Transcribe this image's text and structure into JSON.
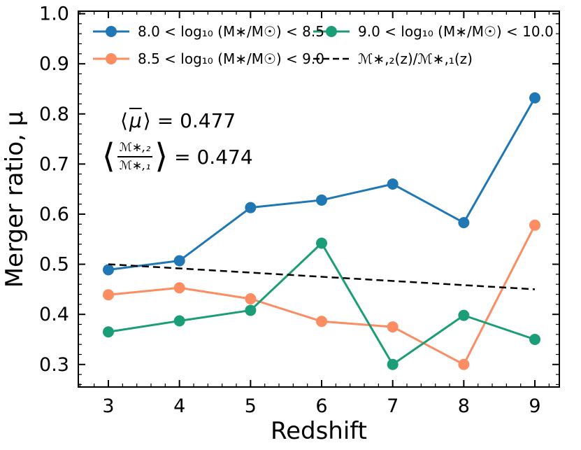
{
  "page": {
    "background": "#ffffff"
  },
  "chart_data": {
    "type": "line",
    "title": "",
    "xlabel": "Redshift",
    "ylabel": "Merger ratio, μ",
    "xlim": [
      2.577,
      9.344
    ],
    "ylim": [
      0.255,
      1.005
    ],
    "x_ticks": [
      3,
      4,
      5,
      6,
      7,
      8,
      9
    ],
    "y_ticks": [
      0.3,
      0.4,
      0.5,
      0.6,
      0.7,
      0.8,
      0.9,
      1.0
    ],
    "grid": false,
    "legend_position": "upper, two columns inside plot",
    "x": [
      3,
      4,
      5,
      6,
      7,
      8,
      9
    ],
    "series": [
      {
        "name": "8.0 < log₁₀ (M∗/M☉) < 8.5",
        "color": "#1f77b4",
        "values": [
          0.489,
          0.507,
          0.613,
          0.628,
          0.66,
          0.583,
          0.832
        ]
      },
      {
        "name": "8.5 < log₁₀ (M∗/M☉) < 9.0",
        "color": "#fc8d62",
        "values": [
          0.439,
          0.453,
          0.431,
          0.386,
          0.375,
          0.3,
          0.578
        ]
      },
      {
        "name": "9.0 < log₁₀ (M∗/M☉) < 10.0",
        "color": "#1b9e77",
        "values": [
          0.365,
          0.387,
          0.408,
          0.542,
          0.3,
          0.398,
          0.35
        ]
      }
    ],
    "dashed_line": {
      "name": "ℳ∗,₂(z)/ℳ∗,₁(z)",
      "color": "#000000",
      "x": [
        3,
        9
      ],
      "y": [
        0.5,
        0.45
      ]
    }
  },
  "annotations": {
    "mu": {
      "open": "⟨",
      "symbol": "μ",
      "close": "⟩",
      "value": "= 0.477"
    },
    "ratio": {
      "open": "⟨",
      "numerator": "ℳ∗,₂",
      "denominator": "ℳ∗,₁",
      "close": "⟩",
      "value": "= 0.474"
    }
  }
}
